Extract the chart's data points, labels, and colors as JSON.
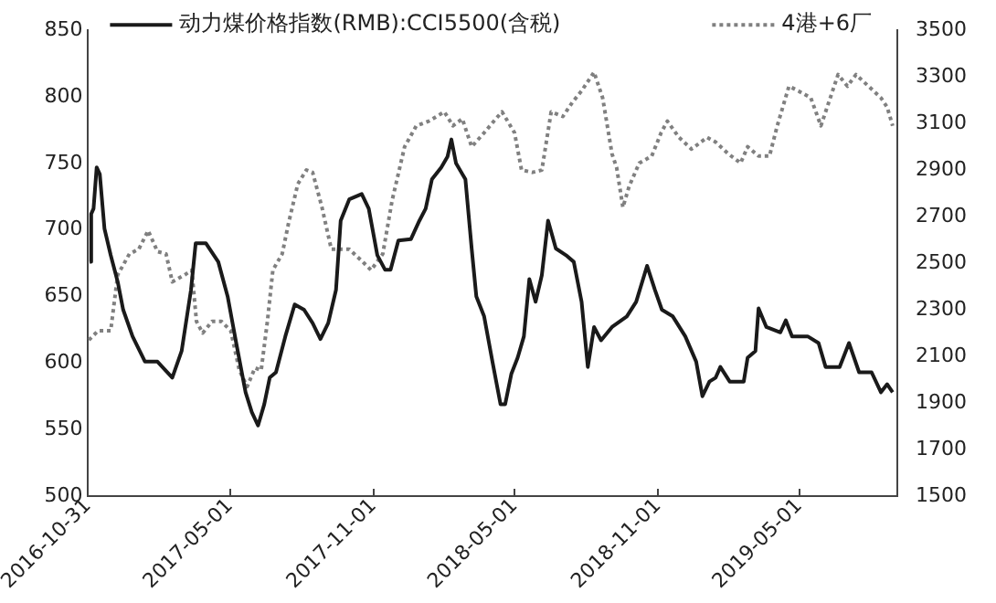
{
  "chart_data": {
    "type": "line",
    "legend": "top",
    "marker": "none",
    "xlim": [
      "2016-10-31",
      "2019-09-04"
    ],
    "xticks": [
      "2016-10-31",
      "2017-05-01",
      "2017-11-01",
      "2018-05-01",
      "2018-11-01",
      "2019-05-01"
    ],
    "ylim": [
      500,
      850
    ],
    "yticks": [
      500,
      550,
      600,
      650,
      700,
      750,
      800,
      850
    ],
    "y2lim": [
      1500,
      3500
    ],
    "y2ticks": [
      1500,
      1700,
      1900,
      2100,
      2300,
      2500,
      2700,
      2900,
      3100,
      3300,
      3500
    ],
    "series": [
      {
        "name": "动力煤价格指数(RMB):CCI5500(含税)",
        "color": "#1a1a1a",
        "line_style": "solid",
        "x": [
          "2016-11-02",
          "2016-11-04",
          "2016-11-07",
          "2016-11-11",
          "2016-11-15",
          "2016-11-21",
          "2016-11-29",
          "2016-12-08",
          "2016-12-15",
          "2016-12-27",
          "2017-01-12",
          "2017-01-28",
          "2017-02-16",
          "2017-02-28",
          "2017-03-12",
          "2017-03-18",
          "2017-03-31",
          "2017-04-16",
          "2017-04-28",
          "2017-05-09",
          "2017-05-21",
          "2017-05-29",
          "2017-06-06",
          "2017-06-14",
          "2017-06-21",
          "2017-06-29",
          "2017-07-11",
          "2017-07-23",
          "2017-08-04",
          "2017-08-15",
          "2017-08-25",
          "2017-09-04",
          "2017-09-14",
          "2017-09-20",
          "2017-10-01",
          "2017-10-17",
          "2017-10-26",
          "2017-11-06",
          "2017-11-16",
          "2017-11-23",
          "2017-12-03",
          "2017-12-19",
          "2017-12-30",
          "2018-01-07",
          "2018-01-15",
          "2018-01-27",
          "2018-02-04",
          "2018-02-09",
          "2018-02-15",
          "2018-02-27",
          "2018-03-07",
          "2018-03-13",
          "2018-03-23",
          "2018-04-03",
          "2018-04-13",
          "2018-04-19",
          "2018-04-27",
          "2018-05-05",
          "2018-05-13",
          "2018-05-20",
          "2018-05-28",
          "2018-06-05",
          "2018-06-13",
          "2018-06-23",
          "2018-07-06",
          "2018-07-16",
          "2018-07-26",
          "2018-08-03",
          "2018-08-11",
          "2018-08-20",
          "2018-09-03",
          "2018-09-22",
          "2018-10-04",
          "2018-10-18",
          "2018-10-28",
          "2018-11-06",
          "2018-11-20",
          "2018-12-06",
          "2018-12-20",
          "2018-12-28",
          "2019-01-06",
          "2019-01-14",
          "2019-01-20",
          "2019-02-01",
          "2019-02-19",
          "2019-02-24",
          "2019-03-06",
          "2019-03-10",
          "2019-03-20",
          "2019-04-07",
          "2019-04-14",
          "2019-04-22",
          "2019-05-12",
          "2019-05-26",
          "2019-06-04",
          "2019-06-22",
          "2019-07-04",
          "2019-07-17",
          "2019-08-02",
          "2019-08-14",
          "2019-08-22",
          "2019-08-29"
        ],
        "values": [
          676,
          712,
          716,
          747,
          742,
          701,
          681,
          661,
          640,
          620,
          601,
          601,
          589,
          609,
          655,
          690,
          690,
          676,
          650,
          615,
          578,
          563,
          553,
          569,
          589,
          593,
          620,
          644,
          640,
          630,
          618,
          630,
          655,
          707,
          723,
          727,
          716,
          681,
          670,
          670,
          692,
          693,
          707,
          716,
          738,
          747,
          755,
          768,
          750,
          738,
          686,
          650,
          635,
          600,
          569,
          569,
          592,
          604,
          620,
          663,
          646,
          666,
          707,
          686,
          681,
          676,
          646,
          597,
          627,
          617,
          627,
          635,
          646,
          673,
          655,
          640,
          635,
          620,
          601,
          575,
          586,
          589,
          597,
          586,
          586,
          604,
          609,
          641,
          627,
          623,
          632,
          620,
          620,
          615,
          597,
          597,
          615,
          593,
          593,
          578,
          584,
          578
        ]
      },
      {
        "name": "4港+6厂",
        "color": "#808080",
        "line_style": "dotted",
        "axis": "y2",
        "x": [
          "2016-11-01",
          "2016-11-13",
          "2016-11-29",
          "2016-12-08",
          "2016-12-23",
          "2017-01-04",
          "2017-01-16",
          "2017-01-28",
          "2017-02-08",
          "2017-02-16",
          "2017-03-04",
          "2017-03-13",
          "2017-03-19",
          "2017-03-27",
          "2017-04-08",
          "2017-04-20",
          "2017-05-02",
          "2017-05-13",
          "2017-05-23",
          "2017-06-02",
          "2017-06-10",
          "2017-06-18",
          "2017-06-25",
          "2017-07-07",
          "2017-07-15",
          "2017-07-27",
          "2017-08-07",
          "2017-08-15",
          "2017-08-27",
          "2017-09-08",
          "2017-09-20",
          "2017-10-01",
          "2017-10-17",
          "2017-10-29",
          "2017-11-13",
          "2017-11-25",
          "2017-12-11",
          "2017-12-26",
          "2018-01-11",
          "2018-01-31",
          "2018-02-11",
          "2018-02-23",
          "2018-03-07",
          "2018-03-23",
          "2018-04-07",
          "2018-04-15",
          "2018-05-01",
          "2018-05-10",
          "2018-05-24",
          "2018-06-05",
          "2018-06-17",
          "2018-07-02",
          "2018-07-14",
          "2018-07-26",
          "2018-08-11",
          "2018-08-22",
          "2018-09-03",
          "2018-09-09",
          "2018-09-17",
          "2018-09-25",
          "2018-10-08",
          "2018-10-24",
          "2018-11-05",
          "2018-11-13",
          "2018-11-28",
          "2018-12-14",
          "2019-01-03",
          "2019-01-14",
          "2019-01-30",
          "2019-02-15",
          "2019-02-24",
          "2019-03-10",
          "2019-03-24",
          "2019-04-03",
          "2019-04-18",
          "2019-04-30",
          "2019-05-16",
          "2019-05-29",
          "2019-06-08",
          "2019-06-20",
          "2019-07-02",
          "2019-07-13",
          "2019-07-29",
          "2019-08-14",
          "2019-08-22",
          "2019-08-29"
        ],
        "values": [
          2170,
          2210,
          2210,
          2450,
          2540,
          2560,
          2640,
          2550,
          2540,
          2420,
          2450,
          2470,
          2250,
          2200,
          2250,
          2250,
          2210,
          2040,
          1970,
          2050,
          2040,
          2250,
          2470,
          2540,
          2670,
          2840,
          2900,
          2890,
          2740,
          2560,
          2560,
          2560,
          2510,
          2470,
          2540,
          2770,
          3000,
          3090,
          3110,
          3150,
          3090,
          3120,
          3000,
          3060,
          3120,
          3150,
          3060,
          2900,
          2890,
          2900,
          3150,
          3130,
          3190,
          3240,
          3320,
          3210,
          2970,
          2910,
          2740,
          2830,
          2930,
          2960,
          3060,
          3110,
          3040,
          2990,
          3040,
          3020,
          2970,
          2930,
          3000,
          2960,
          2960,
          3090,
          3260,
          3240,
          3210,
          3090,
          3190,
          3310,
          3260,
          3310,
          3260,
          3210,
          3170,
          3090
        ]
      }
    ]
  }
}
